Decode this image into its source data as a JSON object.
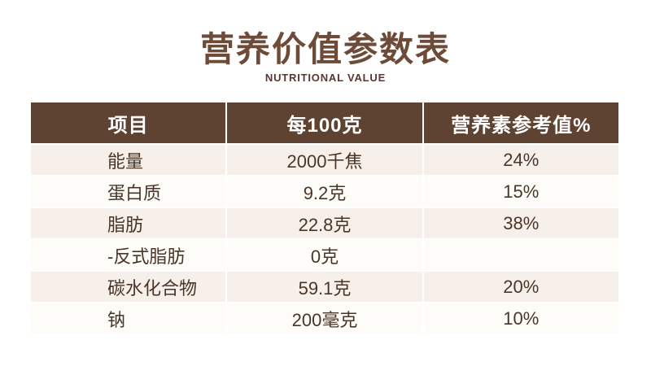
{
  "header": {
    "title": "营养价值参数表",
    "subtitle": "NUTRITIONAL VALUE"
  },
  "table": {
    "columns": [
      "项目",
      "每100克",
      "营养素参考值%"
    ],
    "rows": [
      {
        "item": "能量",
        "per100g": "2000千焦",
        "nrv": "24%"
      },
      {
        "item": "蛋白质",
        "per100g": "9.2克",
        "nrv": "15%"
      },
      {
        "item": "脂肪",
        "per100g": "22.8克",
        "nrv": "38%"
      },
      {
        "item": "-反式脂肪",
        "per100g": "0克",
        "nrv": ""
      },
      {
        "item": "碳水化合物",
        "per100g": "59.1克",
        "nrv": "20%"
      },
      {
        "item": "钠",
        "per100g": "200毫克",
        "nrv": "10%"
      }
    ]
  },
  "colors": {
    "header_bg": "#5e4232",
    "header_text": "#ffffff",
    "row_dark": "#f7f0ea",
    "row_light": "#fefcf8",
    "title": "#6e4b39",
    "subtitle": "#5a362f",
    "body_text": "#493629"
  }
}
